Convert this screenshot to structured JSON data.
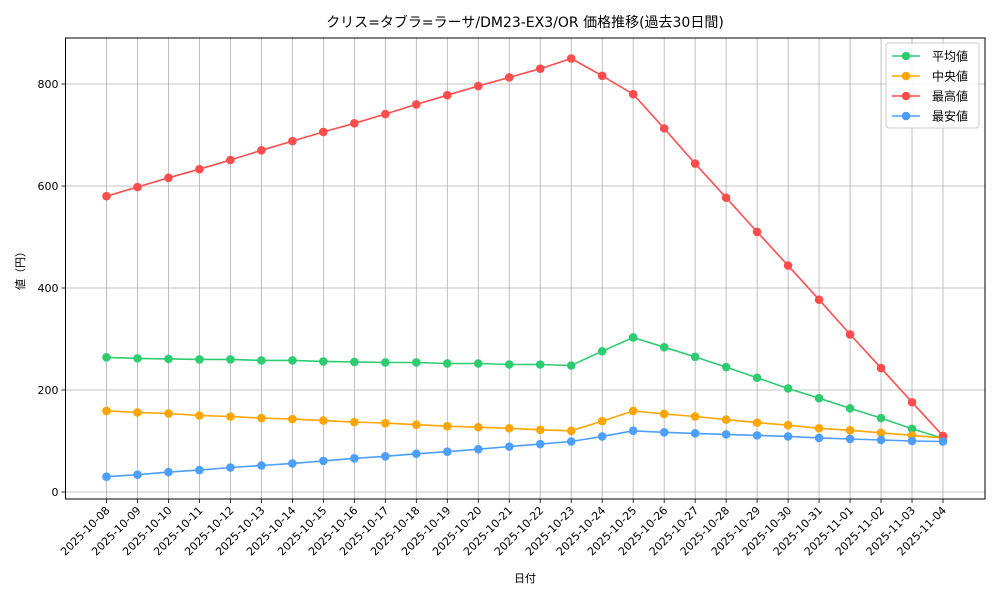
{
  "chart_data": {
    "type": "line",
    "title": "クリス=タブラ=ラーサ/DM23-EX3/OR 価格推移(過去30日間)",
    "xlabel": "日付",
    "ylabel": "値（円）",
    "ylim": [
      -10,
      890
    ],
    "yticks": [
      0,
      200,
      400,
      600,
      800
    ],
    "grid": true,
    "legend_position": "upper right",
    "categories": [
      "2025-10-08",
      "2025-10-09",
      "2025-10-10",
      "2025-10-11",
      "2025-10-12",
      "2025-10-13",
      "2025-10-14",
      "2025-10-15",
      "2025-10-16",
      "2025-10-17",
      "2025-10-18",
      "2025-10-19",
      "2025-10-20",
      "2025-10-21",
      "2025-10-22",
      "2025-10-23",
      "2025-10-24",
      "2025-10-25",
      "2025-10-26",
      "2025-10-27",
      "2025-10-28",
      "2025-10-29",
      "2025-10-30",
      "2025-10-31",
      "2025-11-01",
      "2025-11-02",
      "2025-11-03",
      "2025-11-04"
    ],
    "series": [
      {
        "name": "平均値",
        "color": "#2ecc71",
        "values": [
          264,
          262,
          261,
          260,
          260,
          258,
          258,
          256,
          255,
          254,
          254,
          252,
          252,
          250,
          250,
          248,
          276,
          303,
          284,
          265,
          245,
          224,
          203,
          184,
          164,
          145,
          124,
          105
        ]
      },
      {
        "name": "中央値",
        "color": "#ffa500",
        "values": [
          159,
          156,
          154,
          150,
          148,
          145,
          143,
          140,
          137,
          135,
          132,
          129,
          127,
          125,
          122,
          120,
          139,
          159,
          153,
          148,
          142,
          136,
          131,
          125,
          121,
          116,
          111,
          106
        ]
      },
      {
        "name": "最高値",
        "color": "#ff4d4d",
        "values": [
          580,
          598,
          616,
          633,
          651,
          670,
          688,
          706,
          723,
          741,
          760,
          778,
          796,
          813,
          830,
          850,
          816,
          780,
          713,
          644,
          577,
          510,
          444,
          377,
          309,
          243,
          176,
          110
        ]
      },
      {
        "name": "最安値",
        "color": "#4d9fff",
        "values": [
          30,
          34,
          39,
          43,
          48,
          52,
          56,
          61,
          66,
          70,
          75,
          79,
          84,
          89,
          94,
          99,
          109,
          120,
          117,
          115,
          113,
          111,
          109,
          106,
          104,
          102,
          100,
          99
        ]
      }
    ]
  }
}
